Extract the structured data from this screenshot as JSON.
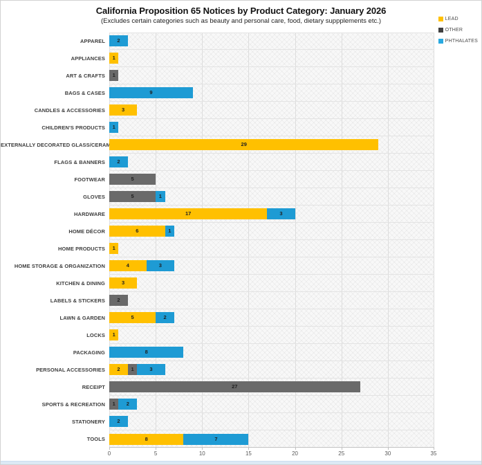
{
  "page": {
    "title": "California Proposition 65 Notices by Product Category: January 2026",
    "subtitle": "(Excludes certain categories such as beauty and personal care, food, dietary suppplements etc.)"
  },
  "legend": {
    "items": [
      {
        "label": "LEAD",
        "color": "#FFC000"
      },
      {
        "label": "OTHER",
        "color": "#404040"
      },
      {
        "label": "PHTHALATES",
        "color": "#29A9E0"
      }
    ]
  },
  "chart_data": {
    "type": "bar",
    "orientation": "horizontal",
    "stacked": true,
    "title": "California Proposition 65 Notices by Product Category: January 2026",
    "subtitle": "(Excludes certain categories such as beauty and personal care, food, dietary suppplements etc.)",
    "categories": [
      "APPAREL",
      "APPLIANCES",
      "ART & CRAFTS",
      "BAGS & CASES",
      "CANDLES & ACCESSORIES",
      "CHILDREN'S PRODUCTS",
      "EXTERNALLY DECORATED GLASS/CERAMICWARE",
      "FLAGS & BANNERS",
      "FOOTWEAR",
      "GLOVES",
      "HARDWARE",
      "HOME DÉCOR",
      "HOME PRODUCTS",
      "HOME STORAGE & ORGANIZATION",
      "KITCHEN & DINING",
      "LABELS & STICKERS",
      "LAWN & GARDEN",
      "LOCKS",
      "PACKAGING",
      "PERSONAL ACCESSORIES",
      "RECEIPT",
      "SPORTS & RECREATION",
      "STATIONERY",
      "TOOLS"
    ],
    "series": [
      {
        "name": "LEAD",
        "color": "#FFC000",
        "values": [
          0,
          1,
          0,
          0,
          3,
          0,
          29,
          0,
          0,
          0,
          17,
          6,
          1,
          4,
          3,
          0,
          5,
          1,
          0,
          2,
          0,
          0,
          0,
          8
        ]
      },
      {
        "name": "OTHER",
        "color": "#6A6A6A",
        "values": [
          0,
          0,
          1,
          0,
          0,
          0,
          0,
          0,
          5,
          5,
          0,
          0,
          0,
          0,
          0,
          2,
          0,
          0,
          0,
          1,
          27,
          1,
          0,
          0
        ]
      },
      {
        "name": "PHTHALATES",
        "color": "#1E9BD4",
        "values": [
          2,
          0,
          0,
          9,
          0,
          1,
          0,
          2,
          0,
          1,
          3,
          1,
          0,
          3,
          0,
          0,
          2,
          0,
          8,
          3,
          0,
          2,
          2,
          7
        ]
      }
    ],
    "xlim": [
      0,
      35
    ],
    "xticks": [
      0,
      5,
      10,
      15,
      20,
      25,
      30,
      35
    ],
    "grid": true,
    "legend_position": "top-right",
    "bar_value_labels": true
  }
}
